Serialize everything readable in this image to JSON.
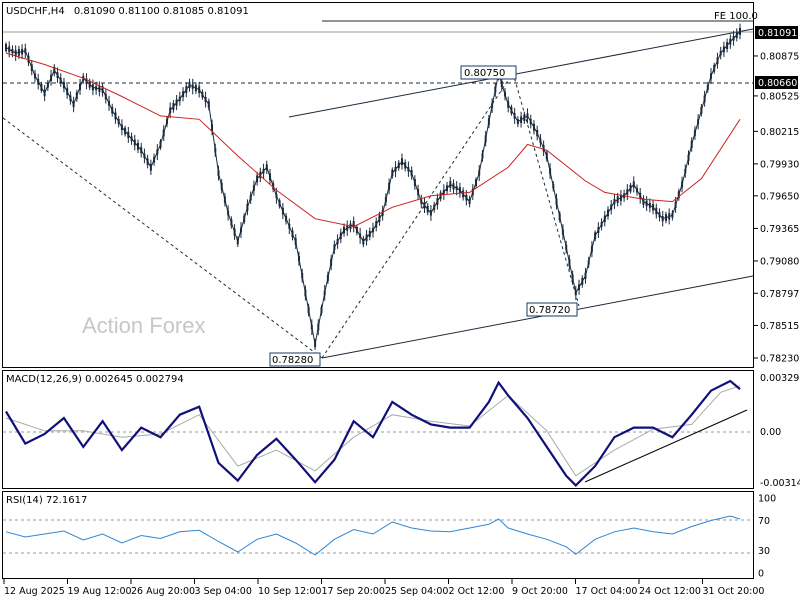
{
  "chart_data": {
    "type": "candlestick",
    "symbol_timeframe": "USDCHF,H4",
    "ohlc_text": "0.81090 0.81100 0.81085 0.81091",
    "watermark": "Action Forex",
    "price_axis": {
      "ylim": [
        0.7816,
        0.8133
      ],
      "ticks": [
        "0.80875",
        "0.80525",
        "0.80215",
        "0.79930",
        "0.79650",
        "0.79365",
        "0.79080",
        "0.78797",
        "0.78515",
        "0.78230"
      ],
      "current_label": "0.81091",
      "level_label": "0.80660"
    },
    "x_ticks": [
      "12 Aug 2025",
      "19 Aug 12:00",
      "26 Aug 20:00",
      "3 Sep 04:00",
      "10 Sep 12:00",
      "17 Sep 20:00",
      "25 Sep 04:00",
      "2 Oct 12:00",
      "9 Oct 20:00",
      "17 Oct 04:00",
      "24 Oct 12:00",
      "31 Oct 20:00"
    ],
    "annotations": {
      "low_1": "0.78280",
      "high_1": "0.80750",
      "low_2": "0.78720",
      "fe": "FE 100.0"
    },
    "colors": {
      "candle": "#1a2a3a",
      "ma": "#cc2222",
      "macd": "#10107a",
      "signal": "#aaaaaa",
      "rsi": "#2e86d6"
    },
    "price_series": [
      {
        "x": 0,
        "y": 0.8095
      },
      {
        "x": 3,
        "y": 0.809
      },
      {
        "x": 6,
        "y": 0.8092
      },
      {
        "x": 9,
        "y": 0.807
      },
      {
        "x": 12,
        "y": 0.8055
      },
      {
        "x": 15,
        "y": 0.8075
      },
      {
        "x": 18,
        "y": 0.8062
      },
      {
        "x": 21,
        "y": 0.8045
      },
      {
        "x": 24,
        "y": 0.8068
      },
      {
        "x": 27,
        "y": 0.806
      },
      {
        "x": 30,
        "y": 0.8058
      },
      {
        "x": 33,
        "y": 0.804
      },
      {
        "x": 36,
        "y": 0.8025
      },
      {
        "x": 39,
        "y": 0.8015
      },
      {
        "x": 42,
        "y": 0.8005
      },
      {
        "x": 45,
        "y": 0.799
      },
      {
        "x": 48,
        "y": 0.801
      },
      {
        "x": 51,
        "y": 0.804
      },
      {
        "x": 54,
        "y": 0.805
      },
      {
        "x": 57,
        "y": 0.8062
      },
      {
        "x": 60,
        "y": 0.8058
      },
      {
        "x": 63,
        "y": 0.8045
      },
      {
        "x": 66,
        "y": 0.7985
      },
      {
        "x": 69,
        "y": 0.795
      },
      {
        "x": 72,
        "y": 0.7925
      },
      {
        "x": 75,
        "y": 0.7955
      },
      {
        "x": 78,
        "y": 0.798
      },
      {
        "x": 81,
        "y": 0.799
      },
      {
        "x": 84,
        "y": 0.7965
      },
      {
        "x": 87,
        "y": 0.7945
      },
      {
        "x": 90,
        "y": 0.7925
      },
      {
        "x": 93,
        "y": 0.788
      },
      {
        "x": 96,
        "y": 0.7835
      },
      {
        "x": 99,
        "y": 0.788
      },
      {
        "x": 102,
        "y": 0.792
      },
      {
        "x": 105,
        "y": 0.7935
      },
      {
        "x": 108,
        "y": 0.794
      },
      {
        "x": 111,
        "y": 0.7925
      },
      {
        "x": 114,
        "y": 0.7935
      },
      {
        "x": 117,
        "y": 0.795
      },
      {
        "x": 120,
        "y": 0.7985
      },
      {
        "x": 123,
        "y": 0.7995
      },
      {
        "x": 126,
        "y": 0.7985
      },
      {
        "x": 129,
        "y": 0.796
      },
      {
        "x": 132,
        "y": 0.795
      },
      {
        "x": 135,
        "y": 0.7965
      },
      {
        "x": 138,
        "y": 0.7975
      },
      {
        "x": 141,
        "y": 0.797
      },
      {
        "x": 144,
        "y": 0.796
      },
      {
        "x": 147,
        "y": 0.7985
      },
      {
        "x": 150,
        "y": 0.803
      },
      {
        "x": 153,
        "y": 0.8072
      },
      {
        "x": 156,
        "y": 0.8045
      },
      {
        "x": 159,
        "y": 0.803
      },
      {
        "x": 162,
        "y": 0.8035
      },
      {
        "x": 165,
        "y": 0.802
      },
      {
        "x": 168,
        "y": 0.8
      },
      {
        "x": 171,
        "y": 0.796
      },
      {
        "x": 174,
        "y": 0.792
      },
      {
        "x": 177,
        "y": 0.788
      },
      {
        "x": 180,
        "y": 0.7895
      },
      {
        "x": 183,
        "y": 0.793
      },
      {
        "x": 186,
        "y": 0.7945
      },
      {
        "x": 189,
        "y": 0.796
      },
      {
        "x": 192,
        "y": 0.7965
      },
      {
        "x": 195,
        "y": 0.7975
      },
      {
        "x": 198,
        "y": 0.796
      },
      {
        "x": 201,
        "y": 0.7955
      },
      {
        "x": 204,
        "y": 0.7945
      },
      {
        "x": 207,
        "y": 0.7948
      },
      {
        "x": 210,
        "y": 0.7975
      },
      {
        "x": 213,
        "y": 0.801
      },
      {
        "x": 216,
        "y": 0.804
      },
      {
        "x": 219,
        "y": 0.807
      },
      {
        "x": 222,
        "y": 0.809
      },
      {
        "x": 225,
        "y": 0.81
      },
      {
        "x": 228,
        "y": 0.8109
      }
    ],
    "ma_series": [
      {
        "x": 0,
        "y": 0.809
      },
      {
        "x": 12,
        "y": 0.808
      },
      {
        "x": 24,
        "y": 0.8068
      },
      {
        "x": 36,
        "y": 0.8052
      },
      {
        "x": 48,
        "y": 0.8035
      },
      {
        "x": 60,
        "y": 0.8032
      },
      {
        "x": 72,
        "y": 0.8
      },
      {
        "x": 84,
        "y": 0.797
      },
      {
        "x": 96,
        "y": 0.7945
      },
      {
        "x": 108,
        "y": 0.7938
      },
      {
        "x": 120,
        "y": 0.7955
      },
      {
        "x": 132,
        "y": 0.7965
      },
      {
        "x": 144,
        "y": 0.7968
      },
      {
        "x": 156,
        "y": 0.799
      },
      {
        "x": 162,
        "y": 0.801
      },
      {
        "x": 168,
        "y": 0.8005
      },
      {
        "x": 180,
        "y": 0.7978
      },
      {
        "x": 186,
        "y": 0.7968
      },
      {
        "x": 198,
        "y": 0.7962
      },
      {
        "x": 207,
        "y": 0.796
      },
      {
        "x": 216,
        "y": 0.798
      },
      {
        "x": 228,
        "y": 0.8032
      }
    ],
    "macd": {
      "label": "MACD(12,26,9) 0.002645 0.002794",
      "ylim": [
        -0.0035,
        0.0036
      ],
      "ticks": [
        "0.003293",
        "0.00",
        "-0.003142"
      ],
      "macd_series": [
        {
          "x": 0,
          "y": 0.0012
        },
        {
          "x": 6,
          "y": -0.0008
        },
        {
          "x": 12,
          "y": -0.0002
        },
        {
          "x": 18,
          "y": 0.0008
        },
        {
          "x": 24,
          "y": -0.001
        },
        {
          "x": 30,
          "y": 0.0006
        },
        {
          "x": 36,
          "y": -0.0012
        },
        {
          "x": 42,
          "y": 0.0002
        },
        {
          "x": 48,
          "y": -0.0004
        },
        {
          "x": 54,
          "y": 0.001
        },
        {
          "x": 60,
          "y": 0.0015
        },
        {
          "x": 66,
          "y": -0.002
        },
        {
          "x": 72,
          "y": -0.0031
        },
        {
          "x": 78,
          "y": -0.0015
        },
        {
          "x": 84,
          "y": -0.0005
        },
        {
          "x": 90,
          "y": -0.0018
        },
        {
          "x": 96,
          "y": -0.0032
        },
        {
          "x": 102,
          "y": -0.0018
        },
        {
          "x": 108,
          "y": 0.0006
        },
        {
          "x": 114,
          "y": -0.0004
        },
        {
          "x": 120,
          "y": 0.0018
        },
        {
          "x": 126,
          "y": 0.001
        },
        {
          "x": 132,
          "y": 0.0004
        },
        {
          "x": 138,
          "y": 0.0002
        },
        {
          "x": 144,
          "y": 0.0002
        },
        {
          "x": 150,
          "y": 0.0018
        },
        {
          "x": 153,
          "y": 0.003
        },
        {
          "x": 156,
          "y": 0.0022
        },
        {
          "x": 162,
          "y": 0.0008
        },
        {
          "x": 168,
          "y": -0.001
        },
        {
          "x": 174,
          "y": -0.0028
        },
        {
          "x": 177,
          "y": -0.0034
        },
        {
          "x": 183,
          "y": -0.0022
        },
        {
          "x": 189,
          "y": -0.0004
        },
        {
          "x": 195,
          "y": 0.0002
        },
        {
          "x": 201,
          "y": 0.0002
        },
        {
          "x": 207,
          "y": -0.0004
        },
        {
          "x": 213,
          "y": 0.001
        },
        {
          "x": 219,
          "y": 0.0025
        },
        {
          "x": 225,
          "y": 0.0031
        },
        {
          "x": 228,
          "y": 0.0026
        }
      ],
      "signal_series": [
        {
          "x": 0,
          "y": 0.0008
        },
        {
          "x": 12,
          "y": 0.0
        },
        {
          "x": 24,
          "y": 0.0
        },
        {
          "x": 36,
          "y": -0.0004
        },
        {
          "x": 48,
          "y": -0.0002
        },
        {
          "x": 60,
          "y": 0.001
        },
        {
          "x": 72,
          "y": -0.0022
        },
        {
          "x": 84,
          "y": -0.0012
        },
        {
          "x": 96,
          "y": -0.0025
        },
        {
          "x": 108,
          "y": -0.0004
        },
        {
          "x": 120,
          "y": 0.001
        },
        {
          "x": 132,
          "y": 0.0006
        },
        {
          "x": 144,
          "y": 0.0003
        },
        {
          "x": 156,
          "y": 0.0022
        },
        {
          "x": 168,
          "y": 0.0
        },
        {
          "x": 177,
          "y": -0.0028
        },
        {
          "x": 189,
          "y": -0.0012
        },
        {
          "x": 201,
          "y": 0.0001
        },
        {
          "x": 213,
          "y": 0.0004
        },
        {
          "x": 222,
          "y": 0.0024
        },
        {
          "x": 228,
          "y": 0.0028
        }
      ]
    },
    "rsi": {
      "label": "RSI(14) 72.1617",
      "ylim": [
        0,
        100
      ],
      "ticks": [
        "100",
        "70",
        "30",
        "0"
      ],
      "series": [
        {
          "x": 0,
          "y": 55
        },
        {
          "x": 6,
          "y": 48
        },
        {
          "x": 12,
          "y": 52
        },
        {
          "x": 18,
          "y": 56
        },
        {
          "x": 24,
          "y": 44
        },
        {
          "x": 30,
          "y": 52
        },
        {
          "x": 36,
          "y": 40
        },
        {
          "x": 42,
          "y": 50
        },
        {
          "x": 48,
          "y": 46
        },
        {
          "x": 54,
          "y": 55
        },
        {
          "x": 60,
          "y": 57
        },
        {
          "x": 66,
          "y": 42
        },
        {
          "x": 72,
          "y": 28
        },
        {
          "x": 78,
          "y": 45
        },
        {
          "x": 84,
          "y": 52
        },
        {
          "x": 90,
          "y": 40
        },
        {
          "x": 96,
          "y": 24
        },
        {
          "x": 102,
          "y": 45
        },
        {
          "x": 108,
          "y": 58
        },
        {
          "x": 114,
          "y": 52
        },
        {
          "x": 120,
          "y": 68
        },
        {
          "x": 126,
          "y": 60
        },
        {
          "x": 132,
          "y": 56
        },
        {
          "x": 138,
          "y": 55
        },
        {
          "x": 144,
          "y": 60
        },
        {
          "x": 150,
          "y": 65
        },
        {
          "x": 153,
          "y": 72
        },
        {
          "x": 156,
          "y": 60
        },
        {
          "x": 162,
          "y": 52
        },
        {
          "x": 168,
          "y": 45
        },
        {
          "x": 174,
          "y": 35
        },
        {
          "x": 177,
          "y": 25
        },
        {
          "x": 183,
          "y": 45
        },
        {
          "x": 189,
          "y": 55
        },
        {
          "x": 195,
          "y": 60
        },
        {
          "x": 201,
          "y": 55
        },
        {
          "x": 207,
          "y": 52
        },
        {
          "x": 213,
          "y": 62
        },
        {
          "x": 219,
          "y": 70
        },
        {
          "x": 225,
          "y": 76
        },
        {
          "x": 228,
          "y": 72
        }
      ]
    }
  }
}
